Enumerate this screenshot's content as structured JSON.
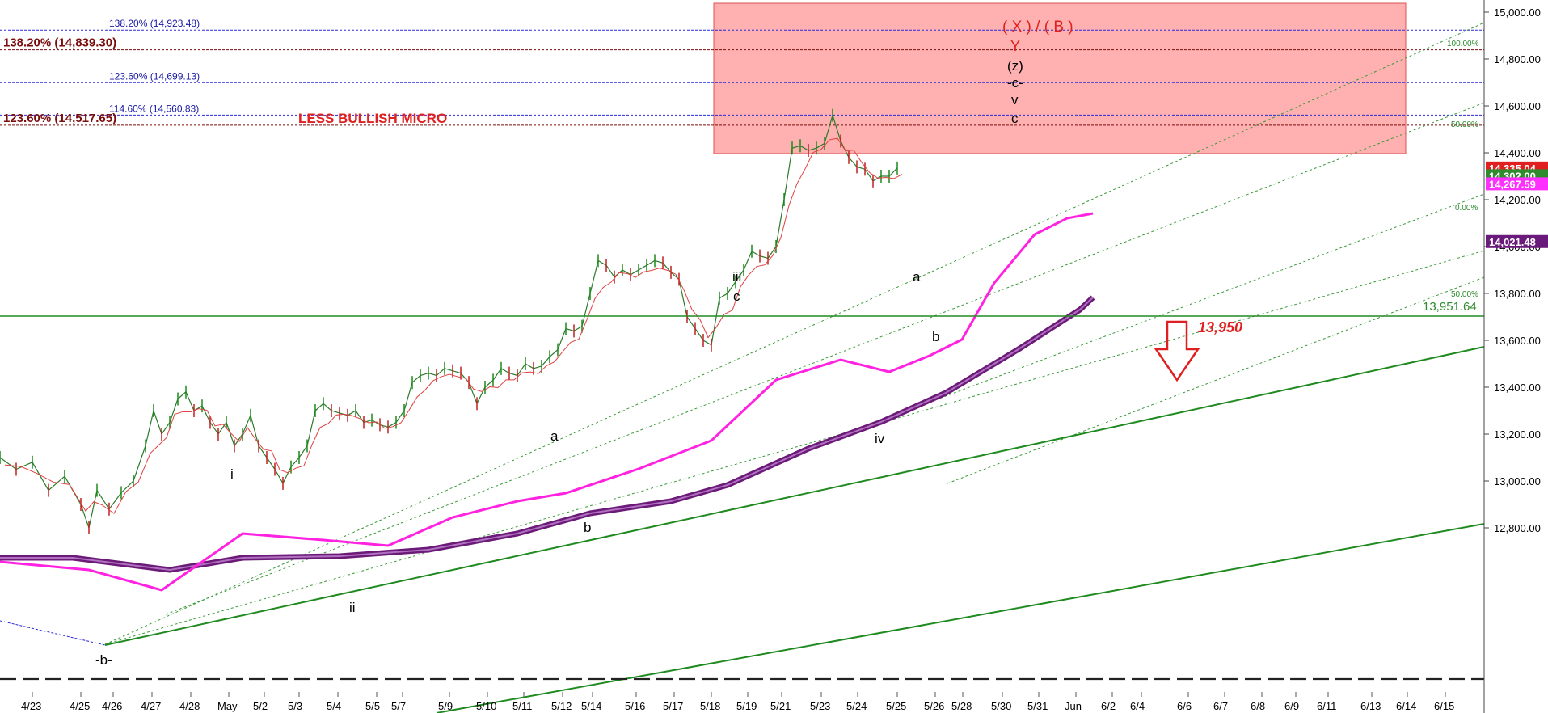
{
  "chart_data": {
    "type": "line",
    "title": "",
    "xlabel": "",
    "ylabel": "",
    "ylim": [
      12650,
      15060
    ],
    "y_ticks": [
      12800,
      13000,
      13200,
      13400,
      13600,
      13800,
      14000,
      14200,
      14400,
      14600,
      14800,
      15000
    ],
    "y_tick_labels": [
      "12,800.00",
      "13,000.00",
      "13,200.00",
      "13,400.00",
      "13,600.00",
      "13,800.00",
      "14,000.00",
      "14,200.00",
      "14,400.00",
      "14,600.00",
      "14,800.00",
      "15,000.00"
    ],
    "x_tick_labels": [
      "4/23",
      "4/25",
      "4/26",
      "4/27",
      "4/28",
      "May",
      "5/2",
      "5/3",
      "5/4",
      "5/5",
      "5/7",
      "5/9",
      "5/10",
      "5/11",
      "5/12",
      "5/14",
      "5/16",
      "5/17",
      "5/18",
      "5/19",
      "5/21",
      "5/23",
      "5/24",
      "5/25",
      "5/26",
      "5/28",
      "5/30",
      "5/31",
      "Jun",
      "6/2",
      "6/4",
      "6/6",
      "6/7",
      "6/8",
      "6/9",
      "6/11",
      "6/13",
      "6/14",
      "6/15"
    ],
    "price_series_x": [
      0,
      20,
      40,
      60,
      80,
      100,
      110,
      120,
      135,
      150,
      165,
      180,
      190,
      200,
      210,
      220,
      230,
      240,
      250,
      260,
      270,
      280,
      290,
      300,
      310,
      320,
      330,
      340,
      350,
      360,
      370,
      380,
      390,
      400,
      410,
      420,
      430,
      440,
      450,
      460,
      470,
      480,
      490,
      500,
      510,
      520,
      530,
      540,
      550,
      560,
      570,
      580,
      590,
      600,
      610,
      620,
      630,
      640,
      650,
      660,
      670,
      680,
      690,
      700,
      710,
      720,
      730,
      740,
      750,
      760,
      770,
      780,
      790,
      800,
      810,
      820,
      830,
      840,
      850,
      860,
      870,
      880,
      890,
      900,
      910,
      920,
      930,
      940,
      950,
      960,
      970,
      980,
      990,
      1000,
      1010,
      1020,
      1030,
      1040,
      1050,
      1060,
      1070,
      1080,
      1090,
      1100,
      1110
    ],
    "price_series_y": [
      13100,
      13050,
      13080,
      12960,
      13020,
      12900,
      12800,
      12960,
      12880,
      12950,
      13000,
      13150,
      13300,
      13200,
      13250,
      13350,
      13380,
      13300,
      13320,
      13250,
      13200,
      13250,
      13150,
      13200,
      13280,
      13150,
      13100,
      13050,
      12990,
      13060,
      13100,
      13150,
      13300,
      13330,
      13300,
      13290,
      13280,
      13300,
      13250,
      13260,
      13240,
      13230,
      13250,
      13300,
      13420,
      13450,
      13460,
      13450,
      13480,
      13470,
      13460,
      13420,
      13330,
      13400,
      13430,
      13480,
      13460,
      13450,
      13500,
      13480,
      13490,
      13530,
      13560,
      13650,
      13640,
      13660,
      13800,
      13940,
      13920,
      13870,
      13900,
      13880,
      13900,
      13920,
      13940,
      13930,
      13890,
      13860,
      13700,
      13650,
      13600,
      13580,
      13780,
      13800,
      13850,
      13900,
      13980,
      13960,
      13950,
      14000,
      14200,
      14420,
      14430,
      14410,
      14420,
      14440,
      14560,
      14450,
      14380,
      14340,
      14330,
      14280,
      14300,
      14300,
      14335
    ],
    "channel_pct_labels": [
      "100.00%",
      "50.00%",
      "0.00%",
      "50.00%"
    ],
    "annotations": {
      "title_red": "( X ) / ( B )",
      "y_red": "Y",
      "z": "(z)",
      "c_dash": "-c-",
      "v": "v",
      "c_top": "c",
      "less_bullish": "LESS BULLISH MICRO",
      "iii": "iii",
      "c_mid": "c",
      "a_right": "a",
      "b_right": "b",
      "iv": "iv",
      "a_left": "a",
      "b_left": "b",
      "i": "i",
      "ii": "ii",
      "b_bottom": "-b-",
      "target": "13,950"
    },
    "fib_levels": [
      {
        "label": "138.20% (14,923.48)",
        "value": 14923.48,
        "color": "#2b2bd6"
      },
      {
        "label": "138.20% (14,839.30)",
        "value": 14839.3,
        "color": "#7a0c0c"
      },
      {
        "label": "123.60% (14,699.13)",
        "value": 14699.13,
        "color": "#2b2bd6"
      },
      {
        "label": "114.60% (14,560.83)",
        "value": 14560.83,
        "color": "#2b2bd6"
      },
      {
        "label": "123.60% (14,517.65)",
        "value": 14517.65,
        "color": "#7a0c0c"
      }
    ],
    "price_tags": [
      {
        "label": "14,335.04",
        "value": 14335.04,
        "color": "#e02020"
      },
      {
        "label": "14,302.00",
        "value": 14302.0,
        "color": "#2e8b2e"
      },
      {
        "label": "14,267.59",
        "value": 14267.59,
        "color": "#ff30ff"
      },
      {
        "label": "14,021.48",
        "value": 14021.48,
        "color": "#6a1a7a"
      }
    ],
    "horizontal_line": {
      "value": 13951.64,
      "label": "13,951.64",
      "color": "#228b22"
    },
    "colors": {
      "ma_magenta": "#ff22e0",
      "ma_purple": "#6b1a78",
      "trend_green": "#1f8a1f",
      "zone_fill": "#ffb0b0",
      "zone_border": "#e05050",
      "arrow": "#e02020"
    }
  }
}
